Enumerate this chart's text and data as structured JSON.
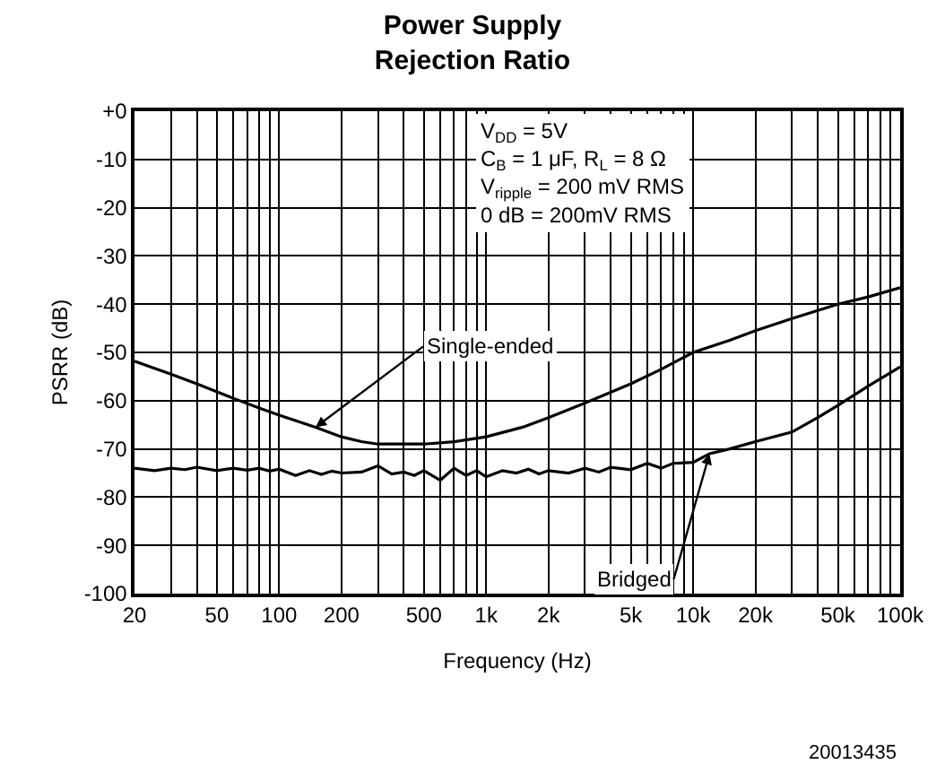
{
  "chart_data": {
    "type": "line",
    "title": "Power Supply Rejection Ratio",
    "xlabel": "Frequency (Hz)",
    "ylabel": "PSRR (dB)",
    "log": "x",
    "grid": true,
    "marker": "none",
    "line_style": "solid",
    "xlim": [
      20,
      100000
    ],
    "ylim": [
      -100,
      0
    ],
    "xticks": [
      20,
      {
        "value": 30,
        "label": null
      },
      {
        "value": 40,
        "label": null
      },
      50,
      {
        "value": 60,
        "label": null
      },
      {
        "value": 70,
        "label": null
      },
      {
        "value": 80,
        "label": null
      },
      {
        "value": 90,
        "label": null
      },
      100,
      200,
      {
        "value": 300,
        "label": null
      },
      {
        "value": 400,
        "label": null
      },
      500,
      {
        "value": 600,
        "label": null
      },
      {
        "value": 700,
        "label": null
      },
      {
        "value": 800,
        "label": null
      },
      {
        "value": 900,
        "label": null
      },
      {
        "value": 1000,
        "label": "1k"
      },
      {
        "value": 2000,
        "label": "2k"
      },
      {
        "value": 3000,
        "label": null
      },
      {
        "value": 4000,
        "label": null
      },
      {
        "value": 5000,
        "label": "5k"
      },
      {
        "value": 6000,
        "label": null
      },
      {
        "value": 7000,
        "label": null
      },
      {
        "value": 8000,
        "label": null
      },
      {
        "value": 9000,
        "label": null
      },
      {
        "value": 10000,
        "label": "10k"
      },
      {
        "value": 20000,
        "label": "20k"
      },
      {
        "value": 30000,
        "label": null
      },
      {
        "value": 40000,
        "label": null
      },
      {
        "value": 50000,
        "label": "50k"
      },
      {
        "value": 60000,
        "label": null
      },
      {
        "value": 70000,
        "label": null
      },
      {
        "value": 80000,
        "label": null
      },
      {
        "value": 90000,
        "label": null
      },
      {
        "value": 100000,
        "label": "100k"
      }
    ],
    "yticks": [
      {
        "value": 0,
        "label": "+0"
      },
      -10,
      -20,
      -30,
      -40,
      -50,
      -60,
      -70,
      -80,
      -90,
      -100
    ],
    "series": [
      {
        "color": "#000000",
        "x": [
          20,
          30,
          40,
          60,
          80,
          100,
          150,
          200,
          250,
          300,
          400,
          500,
          700,
          1000,
          1500,
          2000,
          3000,
          5000,
          7000,
          10000,
          15000,
          20000,
          30000,
          50000,
          70000,
          100000
        ],
        "values": [
          -51.8,
          -54.5,
          -56.5,
          -59.5,
          -61.5,
          -63,
          -65.5,
          -67.5,
          -68.5,
          -69,
          -69,
          -69,
          -68.5,
          -67.5,
          -65.5,
          -63.5,
          -60.5,
          -56.5,
          -53.5,
          -50,
          -47.5,
          -45.5,
          -43,
          -40,
          -38.5,
          -36.6
        ]
      },
      {
        "color": "#000000",
        "x": [
          20,
          25,
          30,
          35,
          40,
          50,
          60,
          70,
          80,
          90,
          100,
          120,
          140,
          160,
          180,
          200,
          250,
          300,
          350,
          400,
          450,
          500,
          600,
          700,
          800,
          900,
          1000,
          1200,
          1400,
          1600,
          1800,
          2000,
          2500,
          3000,
          3500,
          4000,
          5000,
          6000,
          7000,
          8000,
          10000,
          12000,
          15000,
          20000,
          30000,
          40000,
          50000,
          70000,
          100000
        ],
        "values": [
          -74,
          -74.5,
          -74,
          -74.3,
          -73.8,
          -74.5,
          -74,
          -74.4,
          -74,
          -74.6,
          -74.2,
          -75.5,
          -74.5,
          -75.3,
          -74.6,
          -75,
          -74.8,
          -73.5,
          -75.2,
          -74.8,
          -75.5,
          -74.5,
          -76.5,
          -74,
          -75.5,
          -74.5,
          -75.8,
          -74.5,
          -75,
          -74.2,
          -75.2,
          -74.5,
          -75,
          -74,
          -74.8,
          -73.8,
          -74.3,
          -73,
          -74,
          -73,
          -72.8,
          -71,
          -70,
          -68.5,
          -66.5,
          -63.5,
          -61,
          -57,
          -53
        ]
      }
    ],
    "annotations": [
      {
        "text": "Single-ended",
        "x": 150,
        "y": -65.5
      },
      {
        "text": "Bridged",
        "x": 12000,
        "y": -71
      },
      "V$_{DD}$ = 5V",
      "C$_{B}$ = 1 μF, R$_{L}$ = 8 Ω",
      "V$_{ripple}$ = 200 mV RMS",
      "0 dB = 200mV RMS",
      "20013435"
    ]
  }
}
